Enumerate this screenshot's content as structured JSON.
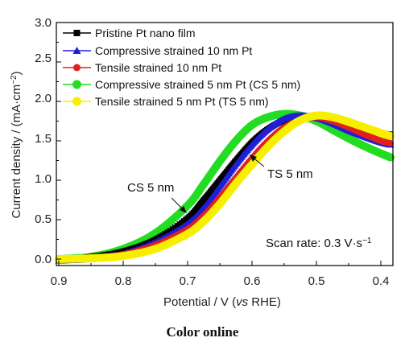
{
  "chart_data": {
    "type": "line",
    "xlabel_parts": [
      "Potential / V (",
      "vs",
      " RHE)"
    ],
    "ylabel_parts": [
      "Current density / (mA·cm",
      "−2",
      ")"
    ],
    "xlim": [
      0.9,
      0.38
    ],
    "ylim": [
      0.0,
      3.0
    ],
    "x_ticks": [
      "0.9",
      "0.8",
      "0.7",
      "0.6",
      "0.5",
      "0.4"
    ],
    "y_ticks": [
      "0.0",
      "0.5",
      "1.0",
      "1.5",
      "2.0",
      "2.5",
      "3.0"
    ],
    "legend_position": "top-left",
    "series": [
      {
        "name": "Pristine Pt nano film",
        "color": "#000000",
        "marker": "square",
        "x": [
          0.9,
          0.85,
          0.8,
          0.75,
          0.7,
          0.675,
          0.65,
          0.625,
          0.6,
          0.575,
          0.55,
          0.525,
          0.5,
          0.475,
          0.45,
          0.425,
          0.4,
          0.385
        ],
        "y": [
          0.0,
          0.03,
          0.1,
          0.25,
          0.52,
          0.75,
          1.0,
          1.25,
          1.48,
          1.65,
          1.76,
          1.8,
          1.8,
          1.76,
          1.7,
          1.65,
          1.6,
          1.58
        ]
      },
      {
        "name": "Compressive strained 10 nm Pt",
        "color": "#1f1fd6",
        "marker": "triangle",
        "x": [
          0.9,
          0.85,
          0.8,
          0.75,
          0.7,
          0.675,
          0.65,
          0.625,
          0.6,
          0.575,
          0.55,
          0.525,
          0.5,
          0.475,
          0.45,
          0.425,
          0.4,
          0.385
        ],
        "y": [
          -0.02,
          0.0,
          0.07,
          0.22,
          0.45,
          0.65,
          0.92,
          1.2,
          1.45,
          1.65,
          1.78,
          1.82,
          1.79,
          1.72,
          1.63,
          1.55,
          1.48,
          1.45
        ]
      },
      {
        "name": "Tensile strained 10 nm Pt",
        "color": "#e02020",
        "marker": "circle",
        "x": [
          0.9,
          0.85,
          0.8,
          0.75,
          0.7,
          0.675,
          0.65,
          0.625,
          0.6,
          0.575,
          0.55,
          0.525,
          0.5,
          0.475,
          0.45,
          0.425,
          0.4,
          0.385
        ],
        "y": [
          0.0,
          0.02,
          0.06,
          0.18,
          0.38,
          0.55,
          0.78,
          1.03,
          1.28,
          1.5,
          1.67,
          1.76,
          1.8,
          1.75,
          1.67,
          1.58,
          1.5,
          1.47
        ]
      },
      {
        "name": "Compressive strained 5 nm Pt (CS 5 nm)",
        "color": "#22dd22",
        "marker": "circle",
        "x": [
          0.9,
          0.85,
          0.8,
          0.75,
          0.7,
          0.675,
          0.65,
          0.625,
          0.6,
          0.575,
          0.55,
          0.525,
          0.5,
          0.475,
          0.45,
          0.425,
          0.4,
          0.385
        ],
        "y": [
          0.0,
          0.03,
          0.13,
          0.33,
          0.68,
          0.95,
          1.24,
          1.5,
          1.7,
          1.8,
          1.84,
          1.82,
          1.75,
          1.64,
          1.53,
          1.43,
          1.34,
          1.29
        ]
      },
      {
        "name": "Tensile strained 5 nm Pt (TS 5 nm)",
        "color": "#f6f000",
        "marker": "circle",
        "x": [
          0.9,
          0.85,
          0.8,
          0.75,
          0.7,
          0.675,
          0.65,
          0.625,
          0.6,
          0.575,
          0.55,
          0.525,
          0.5,
          0.475,
          0.45,
          0.425,
          0.4,
          0.385
        ],
        "y": [
          0.0,
          0.01,
          0.04,
          0.13,
          0.32,
          0.48,
          0.7,
          0.96,
          1.2,
          1.43,
          1.62,
          1.76,
          1.82,
          1.8,
          1.74,
          1.67,
          1.6,
          1.56
        ]
      }
    ],
    "annotations": [
      {
        "text": "CS 5 nm"
      },
      {
        "text": "TS 5 nm"
      },
      {
        "parts": [
          "Scan rate: 0.3 V·s",
          "−1"
        ]
      }
    ]
  },
  "caption": "Color online"
}
